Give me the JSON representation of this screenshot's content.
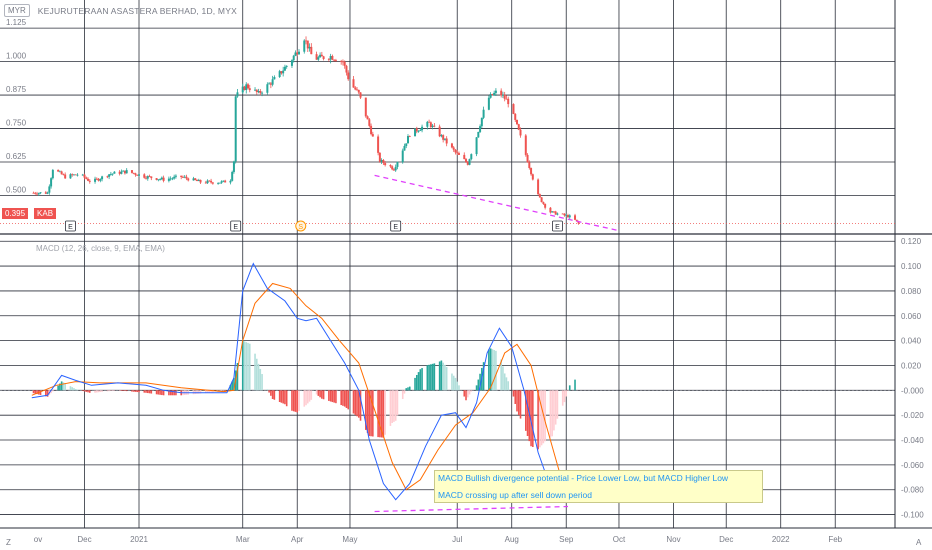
{
  "header": {
    "currency_badge": "MYR",
    "symbol_title": "KEJURUTERAAN ASASTERA BERHAD, 1D, MYX"
  },
  "last_price": {
    "value": "0.395",
    "symbol": "KAB"
  },
  "indicator_title": "MACD (12, 26, close, 9, EMA, EMA)",
  "annotation": {
    "line1": "MACD Bullish divergence potential - Price Lower Low, but MACD Higher Low",
    "line2": "MACD crossing up after sell down period"
  },
  "footer": {
    "left_button": "Z",
    "right_button": "A"
  },
  "colors": {
    "up": "#26a69a",
    "down": "#ef5350",
    "macd": "#2962ff",
    "signal": "#ff6d00",
    "hist_up_strong": "#26a69a",
    "hist_up_weak": "#b2dfdb",
    "hist_down_strong": "#ef5350",
    "hist_down_weak": "#ffcdd2",
    "divergence_line": "#e040fb",
    "grid": "#2a2e39"
  },
  "chart_data": [
    {
      "type": "candlestick",
      "title": "KEJURUTERAAN ASASTERA BERHAD, 1D, MYX",
      "price_ticks": [
        "1.125",
        "1.000",
        "0.875",
        "0.750",
        "0.625",
        "0.500"
      ],
      "ylim": [
        0.36,
        1.23
      ],
      "grid": true,
      "last_value": 0.395,
      "events": [
        {
          "date": "2020-11-23",
          "label": "E"
        },
        {
          "date": "2021-02-25",
          "label": "E"
        },
        {
          "date": "2021-04-03",
          "label": "S"
        },
        {
          "date": "2021-05-27",
          "label": "E"
        },
        {
          "date": "2021-08-27",
          "label": "E"
        }
      ],
      "trendline": {
        "from": [
          "2021-05-15",
          0.575
        ],
        "to": [
          "2021-09-30",
          0.37
        ]
      },
      "price_path": [
        [
          "2020-11-01",
          0.51
        ],
        [
          "2020-11-10",
          0.51
        ],
        [
          "2020-11-13",
          0.6
        ],
        [
          "2020-11-20",
          0.57
        ],
        [
          "2020-11-28",
          0.58
        ],
        [
          "2020-12-05",
          0.55
        ],
        [
          "2020-12-15",
          0.58
        ],
        [
          "2020-12-25",
          0.59
        ],
        [
          "2021-01-05",
          0.57
        ],
        [
          "2021-01-15",
          0.56
        ],
        [
          "2021-01-25",
          0.57
        ],
        [
          "2021-02-05",
          0.55
        ],
        [
          "2021-02-18",
          0.55
        ],
        [
          "2021-02-22",
          0.56
        ],
        [
          "2021-02-24",
          0.63
        ],
        [
          "2021-02-25",
          0.87
        ],
        [
          "2021-03-03",
          0.91
        ],
        [
          "2021-03-10",
          0.88
        ],
        [
          "2021-03-20",
          0.94
        ],
        [
          "2021-03-28",
          1.0
        ],
        [
          "2021-04-02",
          1.05
        ],
        [
          "2021-04-05",
          1.09
        ],
        [
          "2021-04-10",
          1.01
        ],
        [
          "2021-04-20",
          1.02
        ],
        [
          "2021-04-27",
          1.0
        ],
        [
          "2021-05-01",
          0.92
        ],
        [
          "2021-05-06",
          0.88
        ],
        [
          "2021-05-12",
          0.76
        ],
        [
          "2021-05-18",
          0.63
        ],
        [
          "2021-05-26",
          0.6
        ],
        [
          "2021-06-04",
          0.73
        ],
        [
          "2021-06-15",
          0.77
        ],
        [
          "2021-06-22",
          0.72
        ],
        [
          "2021-06-30",
          0.66
        ],
        [
          "2021-07-07",
          0.62
        ],
        [
          "2021-07-12",
          0.72
        ],
        [
          "2021-07-18",
          0.86
        ],
        [
          "2021-07-24",
          0.89
        ],
        [
          "2021-07-30",
          0.85
        ],
        [
          "2021-08-05",
          0.74
        ],
        [
          "2021-08-10",
          0.63
        ],
        [
          "2021-08-16",
          0.5
        ],
        [
          "2021-08-22",
          0.44
        ],
        [
          "2021-08-28",
          0.43
        ],
        [
          "2021-09-04",
          0.42
        ],
        [
          "2021-09-08",
          0.395
        ]
      ]
    },
    {
      "type": "line",
      "title": "MACD (12, 26, close, 9, EMA, EMA)",
      "y_ticks": [
        "0.120",
        "0.100",
        "0.080",
        "0.060",
        "0.040",
        "0.020",
        "-0.000",
        "-0.020",
        "-0.040",
        "-0.060",
        "-0.080",
        "-0.100"
      ],
      "ylim": [
        -0.11,
        0.125
      ],
      "grid": true,
      "trendline": {
        "from": [
          "2021-05-15",
          -0.0975
        ],
        "to": [
          "2021-09-02",
          -0.0935
        ]
      },
      "series": [
        {
          "name": "MACD",
          "points": [
            [
              "2020-11-01",
              -0.006
            ],
            [
              "2020-11-10",
              -0.004
            ],
            [
              "2020-11-18",
              0.012
            ],
            [
              "2020-11-26",
              0.008
            ],
            [
              "2020-12-05",
              0.004
            ],
            [
              "2020-12-20",
              0.006
            ],
            [
              "2021-01-05",
              0.004
            ],
            [
              "2021-01-15",
              0.0
            ],
            [
              "2021-01-25",
              -0.002
            ],
            [
              "2021-02-05",
              -0.002
            ],
            [
              "2021-02-20",
              -0.002
            ],
            [
              "2021-02-24",
              0.01
            ],
            [
              "2021-03-01",
              0.08
            ],
            [
              "2021-03-07",
              0.102
            ],
            [
              "2021-03-15",
              0.082
            ],
            [
              "2021-03-25",
              0.072
            ],
            [
              "2021-04-01",
              0.058
            ],
            [
              "2021-04-06",
              0.056
            ],
            [
              "2021-04-12",
              0.058
            ],
            [
              "2021-04-20",
              0.04
            ],
            [
              "2021-04-28",
              0.022
            ],
            [
              "2021-05-06",
              0.0
            ],
            [
              "2021-05-12",
              -0.04
            ],
            [
              "2021-05-20",
              -0.075
            ],
            [
              "2021-05-27",
              -0.088
            ],
            [
              "2021-06-04",
              -0.075
            ],
            [
              "2021-06-13",
              -0.045
            ],
            [
              "2021-06-22",
              -0.02
            ],
            [
              "2021-06-30",
              -0.018
            ],
            [
              "2021-07-06",
              -0.03
            ],
            [
              "2021-07-12",
              -0.01
            ],
            [
              "2021-07-18",
              0.03
            ],
            [
              "2021-07-25",
              0.05
            ],
            [
              "2021-08-01",
              0.035
            ],
            [
              "2021-08-08",
              0.0
            ],
            [
              "2021-08-16",
              -0.05
            ],
            [
              "2021-08-24",
              -0.082
            ],
            [
              "2021-08-31",
              -0.084
            ],
            [
              "2021-09-06",
              -0.076
            ]
          ]
        },
        {
          "name": "Signal",
          "points": [
            [
              "2020-11-01",
              -0.004
            ],
            [
              "2020-11-15",
              0.004
            ],
            [
              "2020-11-26",
              0.007
            ],
            [
              "2020-12-10",
              0.006
            ],
            [
              "2021-01-05",
              0.006
            ],
            [
              "2021-01-25",
              0.002
            ],
            [
              "2021-02-18",
              -0.001
            ],
            [
              "2021-02-24",
              0.0
            ],
            [
              "2021-03-01",
              0.04
            ],
            [
              "2021-03-08",
              0.07
            ],
            [
              "2021-03-18",
              0.086
            ],
            [
              "2021-03-28",
              0.082
            ],
            [
              "2021-04-06",
              0.068
            ],
            [
              "2021-04-15",
              0.058
            ],
            [
              "2021-04-25",
              0.04
            ],
            [
              "2021-05-06",
              0.022
            ],
            [
              "2021-05-16",
              -0.02
            ],
            [
              "2021-05-25",
              -0.058
            ],
            [
              "2021-06-02",
              -0.08
            ],
            [
              "2021-06-10",
              -0.072
            ],
            [
              "2021-06-20",
              -0.048
            ],
            [
              "2021-06-30",
              -0.028
            ],
            [
              "2021-07-10",
              -0.018
            ],
            [
              "2021-07-20",
              0.002
            ],
            [
              "2021-07-28",
              0.03
            ],
            [
              "2021-08-04",
              0.037
            ],
            [
              "2021-08-12",
              0.02
            ],
            [
              "2021-08-20",
              -0.025
            ],
            [
              "2021-08-28",
              -0.065
            ],
            [
              "2021-09-03",
              -0.084
            ],
            [
              "2021-09-08",
              -0.085
            ]
          ]
        }
      ]
    }
  ],
  "x_axis": {
    "labels": [
      {
        "text": "Dec",
        "date": "2020-12-01"
      },
      {
        "text": "2021",
        "date": "2021-01-01"
      },
      {
        "text": "Mar",
        "date": "2021-03-01"
      },
      {
        "text": "Apr",
        "date": "2021-04-01"
      },
      {
        "text": "May",
        "date": "2021-05-01"
      },
      {
        "text": "Jul",
        "date": "2021-07-01"
      },
      {
        "text": "Aug",
        "date": "2021-08-01"
      },
      {
        "text": "Sep",
        "date": "2021-09-01"
      },
      {
        "text": "Oct",
        "date": "2021-10-01"
      },
      {
        "text": "Nov",
        "date": "2021-11-01"
      },
      {
        "text": "Dec",
        "date": "2021-12-01"
      },
      {
        "text": "2022",
        "date": "2022-01-01"
      },
      {
        "text": "Feb",
        "date": "2022-02-01"
      }
    ],
    "edge_label": {
      "text": "ov",
      "date": "2020-11-01"
    },
    "range": [
      "2020-10-31",
      "2022-03-07"
    ]
  }
}
